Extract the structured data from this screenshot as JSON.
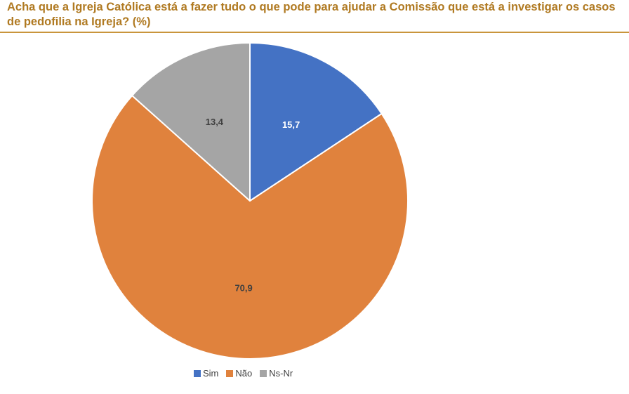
{
  "chart_data": {
    "type": "pie",
    "title": "Acha que a Igreja Católica está a fazer tudo o que pode para ajudar a Comissão que está a investigar os casos de pedofilia na Igreja? (%)",
    "categories": [
      "Sim",
      "Não",
      "Ns-Nr"
    ],
    "values": [
      15.7,
      70.9,
      13.4
    ],
    "value_labels": [
      "15,7",
      "70,9",
      "13,4"
    ],
    "colors": [
      "#4472c4",
      "#e0823d",
      "#a5a5a5"
    ],
    "label_colors": [
      "#ffffff",
      "#404040",
      "#404040"
    ],
    "legend_position": "bottom",
    "start": "12 o'clock",
    "direction": "clockwise"
  }
}
